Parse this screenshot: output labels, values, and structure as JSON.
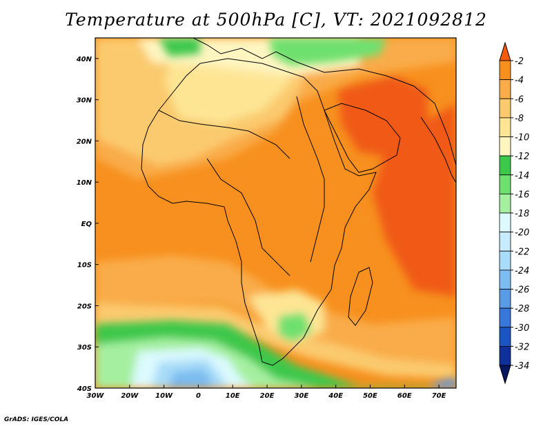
{
  "title": "Temperature at 500hPa [C], VT: 2021092812",
  "footer": "GrADS: IGES/COLA",
  "map": {
    "lon_range": [
      -30,
      75
    ],
    "lat_range": [
      -40,
      45
    ],
    "lon_ticks": [
      {
        "value": -30,
        "label": "30W"
      },
      {
        "value": -20,
        "label": "20W"
      },
      {
        "value": -10,
        "label": "10W"
      },
      {
        "value": 0,
        "label": "0"
      },
      {
        "value": 10,
        "label": "10E"
      },
      {
        "value": 20,
        "label": "20E"
      },
      {
        "value": 30,
        "label": "30E"
      },
      {
        "value": 40,
        "label": "40E"
      },
      {
        "value": 50,
        "label": "50E"
      },
      {
        "value": 60,
        "label": "60E"
      },
      {
        "value": 70,
        "label": "70E"
      }
    ],
    "lat_ticks": [
      {
        "value": 40,
        "label": "40N"
      },
      {
        "value": 30,
        "label": "30N"
      },
      {
        "value": 20,
        "label": "20N"
      },
      {
        "value": 10,
        "label": "10N"
      },
      {
        "value": 0,
        "label": "EQ"
      },
      {
        "value": -10,
        "label": "10S"
      },
      {
        "value": -20,
        "label": "20S"
      },
      {
        "value": -30,
        "label": "30S"
      },
      {
        "value": -40,
        "label": "40S"
      }
    ],
    "colors": {
      "warm_orange_red": "#f05a14",
      "orange": "#f7901e",
      "light_orange": "#f9ac48",
      "yellow_orange": "#fbca6e",
      "pale_yellow": "#fde594",
      "cream": "#fff5c0",
      "green_dark": "#3cc84b",
      "green_mid": "#6ee06e",
      "green_light": "#a5f0a0",
      "pale_cyan": "#dcfaff",
      "light_blue": "#a8dcf8",
      "mid_blue": "#7cbcf0",
      "blue": "#5a9be6"
    }
  },
  "colorbar": {
    "levels": [
      "-2",
      "-4",
      "-6",
      "-8",
      "-10",
      "-12",
      "-14",
      "-16",
      "-18",
      "-20",
      "-22",
      "-24",
      "-26",
      "-28",
      "-30",
      "-32",
      "-34"
    ],
    "colors": [
      "#f25a0c",
      "#f7901e",
      "#f9ac48",
      "#fbca6e",
      "#fde594",
      "#fff5c0",
      "#3cc84b",
      "#6ee06e",
      "#a5f0a0",
      "#dcfaff",
      "#c8ecfd",
      "#a8dcf8",
      "#7cbcf0",
      "#5a9be6",
      "#3778da",
      "#1b55c4",
      "#0f2f9a",
      "#081560"
    ]
  }
}
